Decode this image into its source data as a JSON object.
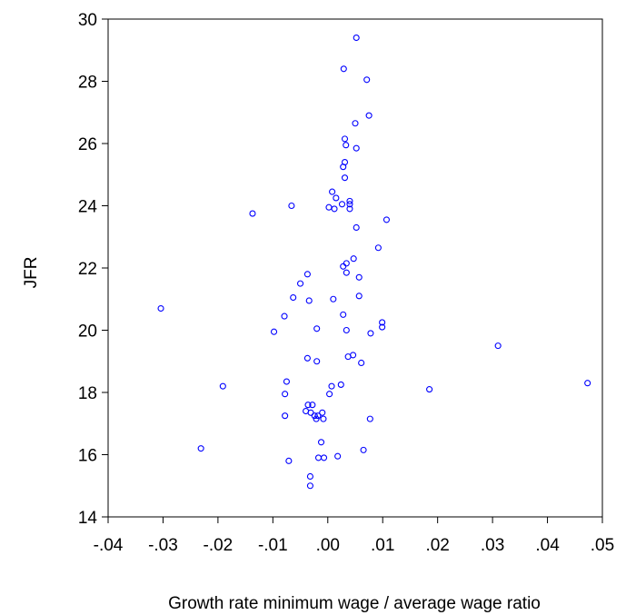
{
  "chart_data": {
    "type": "scatter",
    "title": "",
    "xlabel": "Growth rate minimum wage / average wage ratio",
    "ylabel": "JFR",
    "xlim": [
      -0.04,
      0.05
    ],
    "ylim": [
      14,
      30
    ],
    "xticks": [
      -0.04,
      -0.03,
      -0.02,
      -0.01,
      0.0,
      0.01,
      0.02,
      0.03,
      0.04,
      0.05
    ],
    "xtick_labels": [
      "-.04",
      "-.03",
      "-.02",
      "-.01",
      ".00",
      ".01",
      ".02",
      ".03",
      ".04",
      ".05"
    ],
    "yticks": [
      14,
      16,
      18,
      20,
      22,
      24,
      26,
      28,
      30
    ],
    "ytick_labels": [
      "14",
      "16",
      "18",
      "20",
      "22",
      "24",
      "26",
      "28",
      "30"
    ],
    "grid": false,
    "marker_color": "#0000ff",
    "points": [
      {
        "x": 0.0052,
        "y": 29.4
      },
      {
        "x": 0.0029,
        "y": 28.4
      },
      {
        "x": 0.0071,
        "y": 28.05
      },
      {
        "x": 0.0075,
        "y": 26.9
      },
      {
        "x": 0.005,
        "y": 26.65
      },
      {
        "x": 0.0031,
        "y": 26.15
      },
      {
        "x": 0.0033,
        "y": 25.95
      },
      {
        "x": 0.0052,
        "y": 25.85
      },
      {
        "x": 0.0031,
        "y": 25.4
      },
      {
        "x": 0.0028,
        "y": 25.25
      },
      {
        "x": 0.0031,
        "y": 24.9
      },
      {
        "x": 0.0008,
        "y": 24.45
      },
      {
        "x": 0.0015,
        "y": 24.25
      },
      {
        "x": 0.004,
        "y": 24.15
      },
      {
        "x": 0.004,
        "y": 24.05
      },
      {
        "x": 0.0026,
        "y": 24.05
      },
      {
        "x": -0.0066,
        "y": 24.0
      },
      {
        "x": 0.0002,
        "y": 23.95
      },
      {
        "x": 0.0012,
        "y": 23.9
      },
      {
        "x": 0.004,
        "y": 23.9
      },
      {
        "x": -0.0137,
        "y": 23.75
      },
      {
        "x": 0.0107,
        "y": 23.55
      },
      {
        "x": 0.0052,
        "y": 23.3
      },
      {
        "x": 0.0092,
        "y": 22.65
      },
      {
        "x": 0.0047,
        "y": 22.3
      },
      {
        "x": 0.0034,
        "y": 22.15
      },
      {
        "x": 0.0028,
        "y": 22.05
      },
      {
        "x": 0.0034,
        "y": 21.85
      },
      {
        "x": -0.0037,
        "y": 21.8
      },
      {
        "x": 0.0057,
        "y": 21.7
      },
      {
        "x": -0.005,
        "y": 21.5
      },
      {
        "x": 0.0057,
        "y": 21.1
      },
      {
        "x": -0.0063,
        "y": 21.05
      },
      {
        "x": 0.001,
        "y": 21.0
      },
      {
        "x": -0.0034,
        "y": 20.95
      },
      {
        "x": -0.0304,
        "y": 20.7
      },
      {
        "x": 0.0028,
        "y": 20.5
      },
      {
        "x": -0.0079,
        "y": 20.45
      },
      {
        "x": 0.0099,
        "y": 20.25
      },
      {
        "x": 0.0099,
        "y": 20.1
      },
      {
        "x": -0.002,
        "y": 20.05
      },
      {
        "x": 0.0034,
        "y": 20.0
      },
      {
        "x": -0.0098,
        "y": 19.95
      },
      {
        "x": 0.0078,
        "y": 19.9
      },
      {
        "x": 0.031,
        "y": 19.5
      },
      {
        "x": 0.0046,
        "y": 19.2
      },
      {
        "x": 0.0037,
        "y": 19.15
      },
      {
        "x": -0.0037,
        "y": 19.1
      },
      {
        "x": -0.002,
        "y": 19.0
      },
      {
        "x": 0.0061,
        "y": 18.95
      },
      {
        "x": 0.0473,
        "y": 18.3
      },
      {
        "x": -0.0075,
        "y": 18.35
      },
      {
        "x": -0.0191,
        "y": 18.2
      },
      {
        "x": 0.0007,
        "y": 18.2
      },
      {
        "x": 0.0024,
        "y": 18.25
      },
      {
        "x": 0.0185,
        "y": 18.1
      },
      {
        "x": -0.0078,
        "y": 17.95
      },
      {
        "x": 0.0003,
        "y": 17.95
      },
      {
        "x": -0.0036,
        "y": 17.6
      },
      {
        "x": -0.0028,
        "y": 17.6
      },
      {
        "x": -0.004,
        "y": 17.4
      },
      {
        "x": -0.0031,
        "y": 17.35
      },
      {
        "x": -0.001,
        "y": 17.35
      },
      {
        "x": -0.0024,
        "y": 17.25
      },
      {
        "x": -0.0018,
        "y": 17.25
      },
      {
        "x": -0.0078,
        "y": 17.25
      },
      {
        "x": -0.0021,
        "y": 17.15
      },
      {
        "x": -0.0008,
        "y": 17.15
      },
      {
        "x": 0.0077,
        "y": 17.15
      },
      {
        "x": -0.0012,
        "y": 16.4
      },
      {
        "x": -0.0231,
        "y": 16.2
      },
      {
        "x": 0.0065,
        "y": 16.15
      },
      {
        "x": 0.0018,
        "y": 15.95
      },
      {
        "x": -0.0017,
        "y": 15.9
      },
      {
        "x": -0.0007,
        "y": 15.9
      },
      {
        "x": -0.0071,
        "y": 15.8
      },
      {
        "x": -0.0032,
        "y": 15.3
      },
      {
        "x": -0.0032,
        "y": 15.0
      }
    ]
  }
}
